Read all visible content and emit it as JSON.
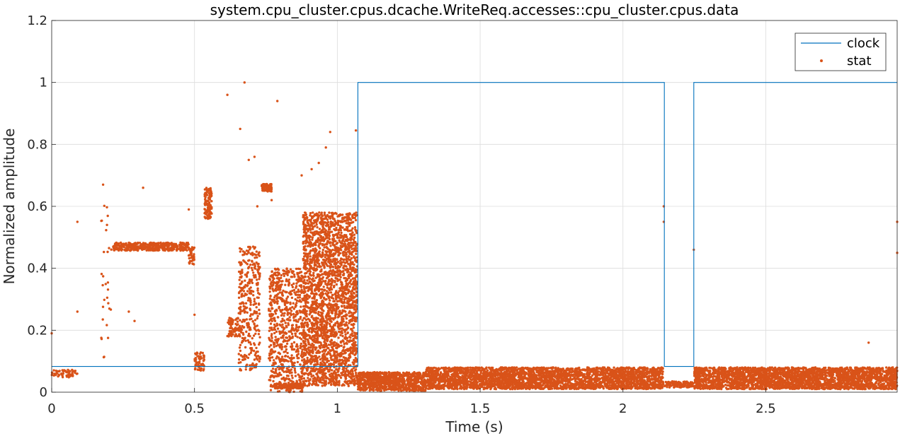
{
  "chart_data": {
    "type": "line",
    "title": "system.cpu_cluster.cpus.dcache.WriteReq.accesses::cpu_cluster.cpus.data",
    "xlabel": "Time (s)",
    "ylabel": "Normalized amplitude",
    "xlim": [
      0,
      2.96
    ],
    "ylim": [
      0,
      1.2
    ],
    "xticks": [
      0,
      0.5,
      1,
      1.5,
      2,
      2.5
    ],
    "xtick_labels": [
      "0",
      "0.5",
      "1",
      "1.5",
      "2",
      "2.5"
    ],
    "yticks": [
      0,
      0.2,
      0.4,
      0.6,
      0.8,
      1,
      1.2
    ],
    "ytick_labels": [
      "0",
      "0.2",
      "0.4",
      "0.6",
      "0.8",
      "1",
      "1.2"
    ],
    "grid": true,
    "legend_position": "top-right",
    "colors": {
      "clock": "#0072bd",
      "stat": "#d95319"
    },
    "series": [
      {
        "name": "clock",
        "style": "line",
        "x": [
          0,
          1.072,
          1.072,
          2.145,
          2.145,
          2.248,
          2.248,
          2.96
        ],
        "y": [
          0.083,
          0.083,
          1,
          1,
          0.083,
          0.083,
          1,
          1
        ]
      },
      {
        "name": "stat",
        "style": "points",
        "segments": [
          {
            "x0": 0.0,
            "x1": 0.09,
            "center": 0.06,
            "spread": 0.012,
            "density": 60
          },
          {
            "x0": 0.17,
            "x1": 0.21,
            "center": 0.36,
            "spread": 0.25,
            "density": 30
          },
          {
            "x0": 0.215,
            "x1": 0.48,
            "center": 0.47,
            "spread": 0.013,
            "density": 420
          },
          {
            "x0": 0.48,
            "x1": 0.5,
            "center": 0.44,
            "spread": 0.03,
            "density": 40
          },
          {
            "x0": 0.5,
            "x1": 0.535,
            "center": 0.1,
            "spread": 0.03,
            "density": 60
          },
          {
            "x0": 0.535,
            "x1": 0.56,
            "center": 0.61,
            "spread": 0.05,
            "density": 120
          },
          {
            "x0": 0.615,
            "x1": 0.66,
            "center": 0.21,
            "spread": 0.03,
            "density": 80
          },
          {
            "x0": 0.655,
            "x1": 0.73,
            "center": 0.27,
            "spread": 0.2,
            "density": 350
          },
          {
            "x0": 0.735,
            "x1": 0.77,
            "center": 0.66,
            "spread": 0.012,
            "density": 80
          },
          {
            "x0": 0.76,
            "x1": 0.88,
            "center": 0.2,
            "spread": 0.2,
            "density": 700
          },
          {
            "x0": 0.78,
            "x1": 0.88,
            "center": 0.02,
            "spread": 0.008,
            "density": 180
          },
          {
            "x0": 0.88,
            "x1": 1.07,
            "center": 0.3,
            "spread": 0.28,
            "density": 2600
          },
          {
            "x0": 1.07,
            "x1": 1.31,
            "center": 0.035,
            "spread": 0.03,
            "density": 900
          },
          {
            "x0": 1.31,
            "x1": 2.14,
            "center": 0.045,
            "spread": 0.035,
            "density": 3200
          },
          {
            "x0": 2.14,
            "x1": 2.25,
            "center": 0.025,
            "spread": 0.01,
            "density": 120
          },
          {
            "x0": 2.25,
            "x1": 2.96,
            "center": 0.045,
            "spread": 0.035,
            "density": 2800
          }
        ],
        "outliers": [
          [
            0.66,
            0.85
          ],
          [
            0.675,
            1.0
          ],
          [
            0.79,
            0.94
          ],
          [
            0.615,
            0.96
          ],
          [
            0.975,
            0.84
          ],
          [
            1.065,
            0.845
          ],
          [
            0.96,
            0.79
          ],
          [
            0.91,
            0.72
          ],
          [
            0.69,
            0.75
          ],
          [
            0.72,
            0.6
          ],
          [
            0.875,
            0.7
          ],
          [
            0.935,
            0.74
          ],
          [
            0.18,
            0.67
          ],
          [
            0.09,
            0.55
          ],
          [
            0.0,
            0.19
          ],
          [
            0.09,
            0.26
          ],
          [
            0.27,
            0.26
          ],
          [
            0.29,
            0.23
          ],
          [
            2.143,
            0.6
          ],
          [
            2.143,
            0.55
          ],
          [
            2.248,
            0.46
          ],
          [
            2.96,
            0.55
          ],
          [
            2.96,
            0.45
          ],
          [
            2.86,
            0.16
          ],
          [
            0.48,
            0.59
          ],
          [
            0.32,
            0.66
          ],
          [
            0.71,
            0.76
          ],
          [
            0.77,
            0.62
          ],
          [
            0.5,
            0.25
          ]
        ]
      }
    ]
  }
}
